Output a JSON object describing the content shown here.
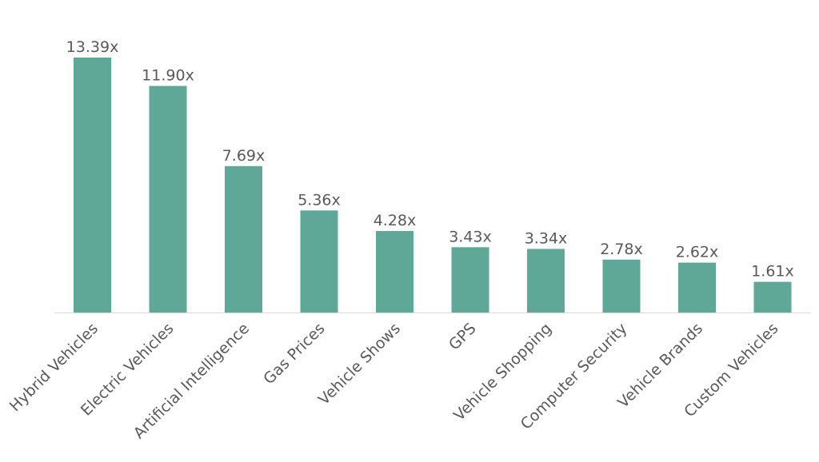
{
  "chart_data": {
    "type": "bar",
    "categories": [
      "Hybrid Vehicles",
      "Electric Vehicles",
      "Artificial Intelligence",
      "Gas Prices",
      "Vehicle Shows",
      "GPS",
      "Vehicle Shopping",
      "Computer Security",
      "Vehicle Brands",
      "Custom Vehicles"
    ],
    "values": [
      13.39,
      11.9,
      7.69,
      5.36,
      4.28,
      3.43,
      3.34,
      2.78,
      2.62,
      1.61
    ],
    "data_labels": [
      "13.39x",
      "11.90x",
      "7.69x",
      "5.36x",
      "4.28x",
      "3.43x",
      "3.34x",
      "2.78x",
      "2.62x",
      "1.61x"
    ],
    "title": "",
    "xlabel": "",
    "ylabel": "",
    "ylim": [
      0,
      13.39
    ],
    "grid": false,
    "legend": "none",
    "bar_color": "#5fa898",
    "axis_color": "#d9d9d9",
    "text_color": "#595959"
  }
}
